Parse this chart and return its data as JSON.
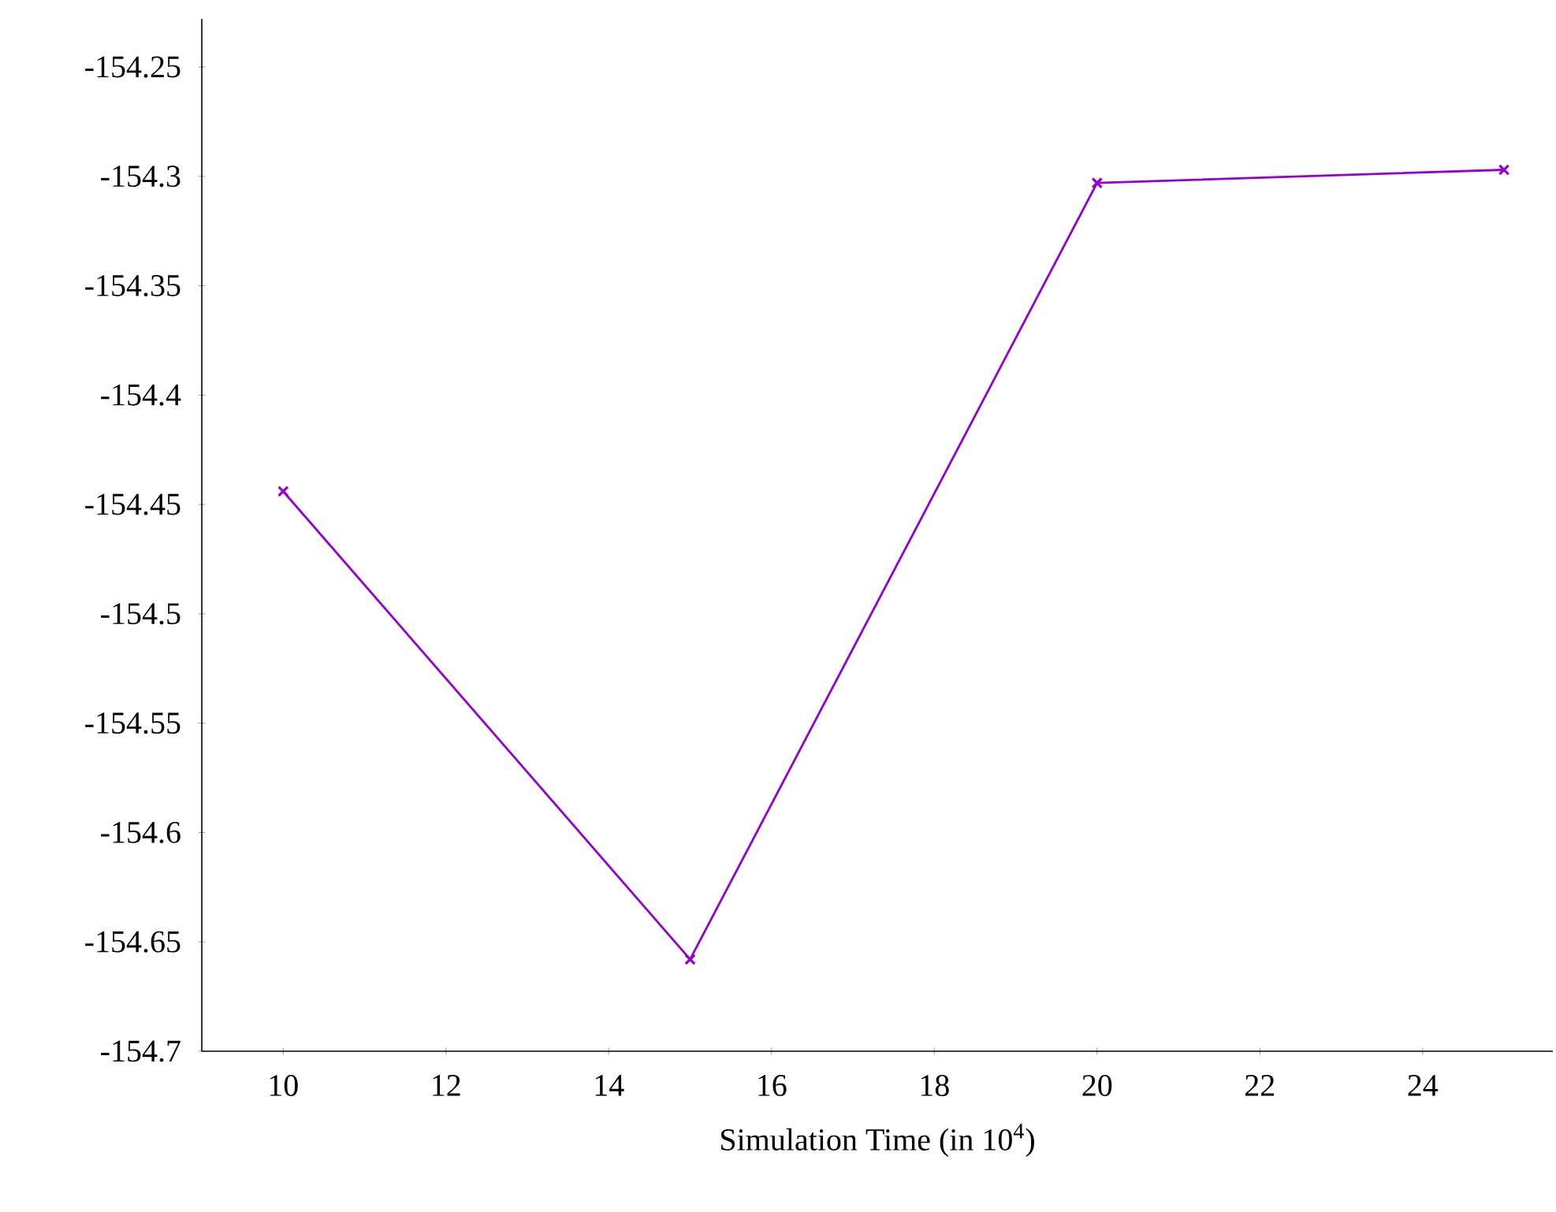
{
  "chart_data": {
    "type": "line",
    "xlabel": "Simulation Time (in 10$^{4}$)",
    "x": [
      10,
      15,
      20,
      25
    ],
    "series": [
      {
        "color": "#9400d3",
        "values": [
          -154.444,
          -154.658,
          -154.303,
          -154.297
        ]
      }
    ],
    "xlim": [
      9,
      25.6
    ],
    "ylim": [
      -154.7,
      -154.228
    ],
    "xticks": [
      10,
      12,
      14,
      16,
      18,
      20,
      22,
      24
    ],
    "yticks": [
      -154.7,
      -154.65,
      -154.6,
      -154.55,
      -154.5,
      -154.45,
      -154.4,
      -154.35,
      -154.3,
      -154.25
    ],
    "marker": "cross",
    "line_style": "solid"
  }
}
